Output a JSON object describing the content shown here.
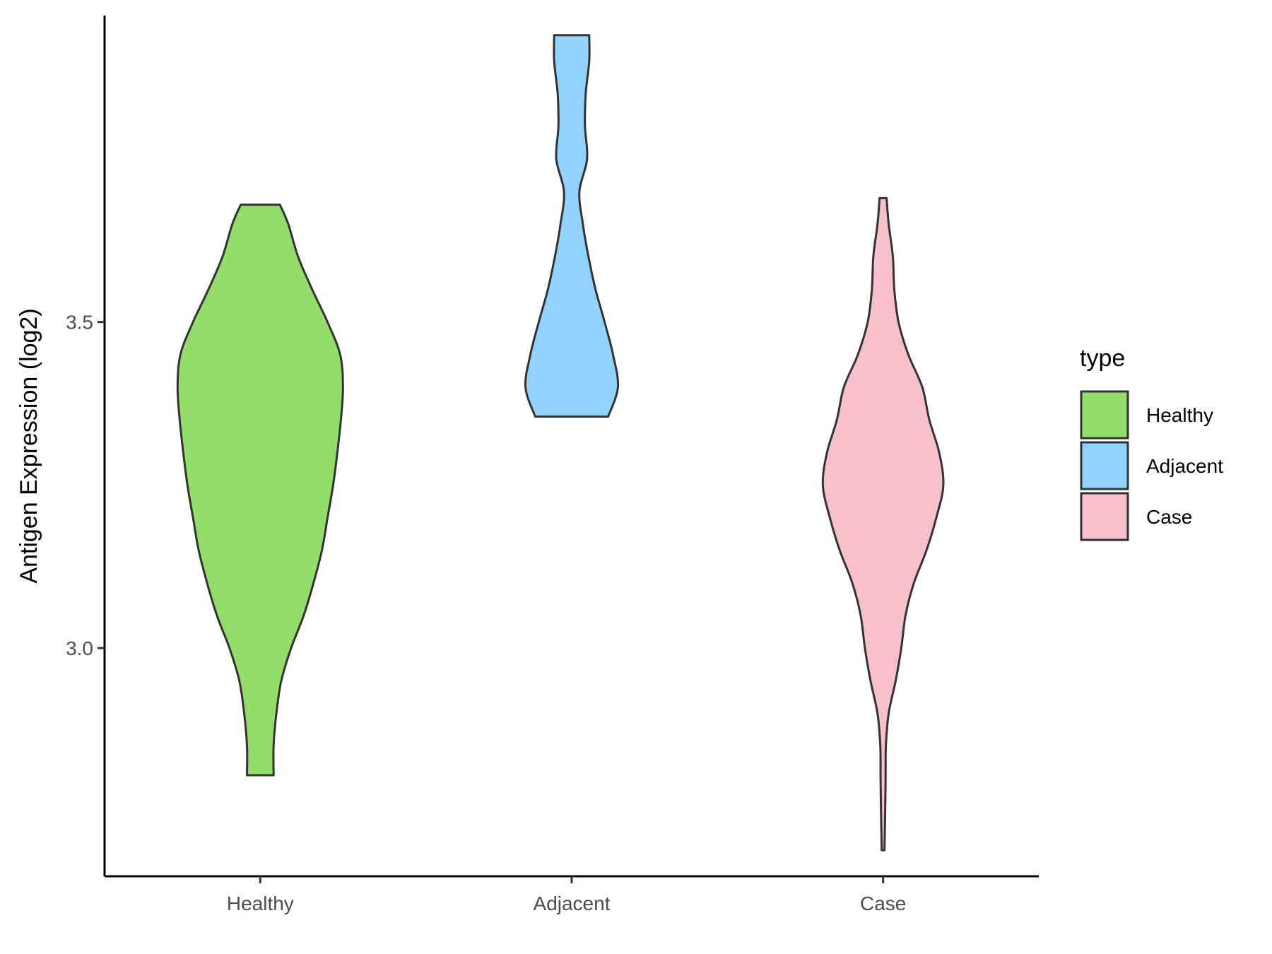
{
  "chart_data": {
    "type": "violin",
    "ylabel": "Antigen Expression (log2)",
    "xlabel": "",
    "categories": [
      "Healthy",
      "Adjacent",
      "Case"
    ],
    "ylim": [
      2.65,
      3.97
    ],
    "yticks": [
      3.0,
      3.5
    ],
    "ytick_labels": [
      "3.0",
      "3.5"
    ],
    "legend": {
      "title": "type",
      "position": "right",
      "entries": [
        "Healthy",
        "Adjacent",
        "Case"
      ]
    },
    "grid": false,
    "series": [
      {
        "name": "Healthy",
        "color": "#93dd6a",
        "min": 2.805,
        "max": 3.68,
        "density": [
          [
            2.805,
            0.095
          ],
          [
            2.85,
            0.095
          ],
          [
            2.9,
            0.115
          ],
          [
            2.95,
            0.15
          ],
          [
            3.0,
            0.22
          ],
          [
            3.05,
            0.31
          ],
          [
            3.1,
            0.38
          ],
          [
            3.15,
            0.44
          ],
          [
            3.2,
            0.48
          ],
          [
            3.25,
            0.52
          ],
          [
            3.3,
            0.55
          ],
          [
            3.35,
            0.575
          ],
          [
            3.4,
            0.59
          ],
          [
            3.45,
            0.57
          ],
          [
            3.5,
            0.48
          ],
          [
            3.55,
            0.37
          ],
          [
            3.6,
            0.27
          ],
          [
            3.65,
            0.2
          ],
          [
            3.68,
            0.14
          ]
        ]
      },
      {
        "name": "Adjacent",
        "color": "#92d2ff",
        "min": 3.355,
        "max": 3.94,
        "density": [
          [
            3.355,
            0.26
          ],
          [
            3.4,
            0.33
          ],
          [
            3.45,
            0.295
          ],
          [
            3.5,
            0.235
          ],
          [
            3.55,
            0.17
          ],
          [
            3.6,
            0.12
          ],
          [
            3.65,
            0.08
          ],
          [
            3.7,
            0.055
          ],
          [
            3.75,
            0.11
          ],
          [
            3.8,
            0.095
          ],
          [
            3.85,
            0.1
          ],
          [
            3.9,
            0.125
          ],
          [
            3.94,
            0.125
          ]
        ]
      },
      {
        "name": "Case",
        "color": "#f7c0cb",
        "min": 2.69,
        "max": 3.69,
        "density": [
          [
            2.69,
            0.01
          ],
          [
            2.75,
            0.015
          ],
          [
            2.8,
            0.018
          ],
          [
            2.85,
            0.02
          ],
          [
            2.9,
            0.04
          ],
          [
            2.95,
            0.09
          ],
          [
            3.0,
            0.13
          ],
          [
            3.05,
            0.16
          ],
          [
            3.1,
            0.22
          ],
          [
            3.15,
            0.31
          ],
          [
            3.2,
            0.38
          ],
          [
            3.25,
            0.43
          ],
          [
            3.3,
            0.4
          ],
          [
            3.35,
            0.33
          ],
          [
            3.4,
            0.28
          ],
          [
            3.45,
            0.18
          ],
          [
            3.5,
            0.11
          ],
          [
            3.55,
            0.08
          ],
          [
            3.6,
            0.07
          ],
          [
            3.65,
            0.04
          ],
          [
            3.69,
            0.025
          ]
        ]
      }
    ]
  }
}
